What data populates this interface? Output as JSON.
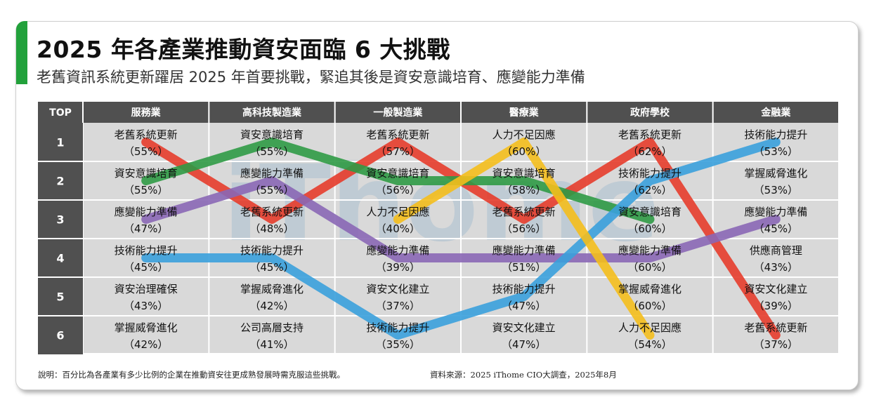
{
  "title": "2025 年各產業推動資安面臨 6 大挑戰",
  "subtitle": "老舊資訊系統更新躍居 2025 年首要挑戰，緊追其後是資安意識培育、應變能力準備",
  "watermark": "iThome",
  "footnote": "說明：百分比為各產業有多少比例的企業在推動資安往更成熟發展時需克服這些挑戰。",
  "source": "資料來源：2025 iThome CIO大調查，2025年8月",
  "chart_data": {
    "type": "table",
    "rank_header": "TOP",
    "ranks": [
      "1",
      "2",
      "3",
      "4",
      "5",
      "6"
    ],
    "industries": [
      {
        "name": "服務業",
        "items": [
          {
            "label": "老舊系統更新",
            "value": 55
          },
          {
            "label": "資安意識培育",
            "value": 55
          },
          {
            "label": "應變能力準備",
            "value": 47
          },
          {
            "label": "技術能力提升",
            "value": 45
          },
          {
            "label": "資安治理確保",
            "value": 43
          },
          {
            "label": "掌握威脅進化",
            "value": 42
          }
        ]
      },
      {
        "name": "高科技製造業",
        "items": [
          {
            "label": "資安意識培育",
            "value": 55
          },
          {
            "label": "應變能力準備",
            "value": 55
          },
          {
            "label": "老舊系統更新",
            "value": 48
          },
          {
            "label": "技術能力提升",
            "value": 45
          },
          {
            "label": "掌握威脅進化",
            "value": 42
          },
          {
            "label": "公司高層支持",
            "value": 41
          }
        ]
      },
      {
        "name": "一般製造業",
        "items": [
          {
            "label": "老舊系統更新",
            "value": 57
          },
          {
            "label": "資安意識培育",
            "value": 56
          },
          {
            "label": "人力不足因應",
            "value": 40
          },
          {
            "label": "應變能力準備",
            "value": 39
          },
          {
            "label": "資安文化建立",
            "value": 37
          },
          {
            "label": "技術能力提升",
            "value": 35
          }
        ]
      },
      {
        "name": "醫療業",
        "items": [
          {
            "label": "人力不足因應",
            "value": 60
          },
          {
            "label": "資安意識培育",
            "value": 58
          },
          {
            "label": "老舊系統更新",
            "value": 56
          },
          {
            "label": "應變能力準備",
            "value": 51
          },
          {
            "label": "技術能力提升",
            "value": 47
          },
          {
            "label": "資安文化建立",
            "value": 47
          }
        ]
      },
      {
        "name": "政府學校",
        "items": [
          {
            "label": "老舊系統更新",
            "value": 62
          },
          {
            "label": "技術能力提升",
            "value": 62
          },
          {
            "label": "資安意識培育",
            "value": 60
          },
          {
            "label": "應變能力準備",
            "value": 60
          },
          {
            "label": "掌握威脅進化",
            "value": 60
          },
          {
            "label": "人力不足因應",
            "value": 54
          }
        ]
      },
      {
        "name": "金融業",
        "items": [
          {
            "label": "技術能力提升",
            "value": 53
          },
          {
            "label": "掌握威脅進化",
            "value": 53
          },
          {
            "label": "應變能力準備",
            "value": 45
          },
          {
            "label": "供應商管理",
            "value": 43
          },
          {
            "label": "資安文化建立",
            "value": 39
          },
          {
            "label": "老舊系統更新",
            "value": 37
          }
        ]
      }
    ],
    "highlighted_series": [
      {
        "name": "老舊系統更新",
        "color": "#e63c2b",
        "ranks": [
          1,
          3,
          1,
          3,
          1,
          6
        ]
      },
      {
        "name": "資安意識培育",
        "color": "#2f9a45",
        "ranks": [
          2,
          1,
          2,
          2,
          3,
          null
        ]
      },
      {
        "name": "應變能力準備",
        "color": "#8a67b5",
        "ranks": [
          3,
          2,
          4,
          4,
          4,
          3
        ]
      },
      {
        "name": "技術能力提升",
        "color": "#3aa0dc",
        "ranks": [
          4,
          4,
          6,
          5,
          2,
          1
        ]
      },
      {
        "name": "人力不足因應",
        "color": "#f4be1c",
        "ranks": [
          null,
          null,
          3,
          1,
          6,
          null
        ]
      }
    ]
  }
}
